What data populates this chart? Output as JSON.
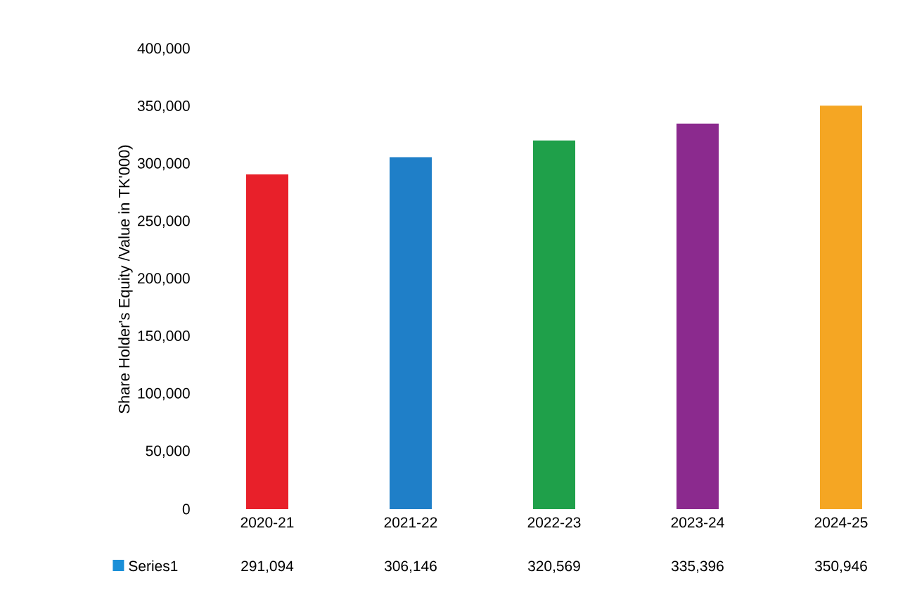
{
  "chart_data": {
    "type": "bar",
    "ylabel": "Share Holder's Equity /Value in TK'000)",
    "categories": [
      "2020-21",
      "2021-22",
      "2022-23",
      "2023-24",
      "2024-25"
    ],
    "series": [
      {
        "name": "Series1",
        "color": "#1a8fd8",
        "colors": [
          "#e8202a",
          "#1f7fc8",
          "#1fa04a",
          "#8b2a8e",
          "#f5a623"
        ],
        "values": [
          291094,
          306146,
          320569,
          335396,
          350946
        ],
        "value_labels": [
          "291,094",
          "306,146",
          "320,569",
          "335,396",
          "350,946"
        ]
      }
    ],
    "ylim": [
      0,
      400000
    ],
    "yticks": [
      {
        "value": 0,
        "label": "0"
      },
      {
        "value": 50000,
        "label": "50,000"
      },
      {
        "value": 100000,
        "label": "100,000"
      },
      {
        "value": 150000,
        "label": "150,000"
      },
      {
        "value": 200000,
        "label": "200,000"
      },
      {
        "value": 250000,
        "label": "250,000"
      },
      {
        "value": 300000,
        "label": "300,000"
      },
      {
        "value": 350000,
        "label": "350,000"
      },
      {
        "value": 400000,
        "label": "400,000"
      }
    ],
    "legend": "bottom left"
  }
}
